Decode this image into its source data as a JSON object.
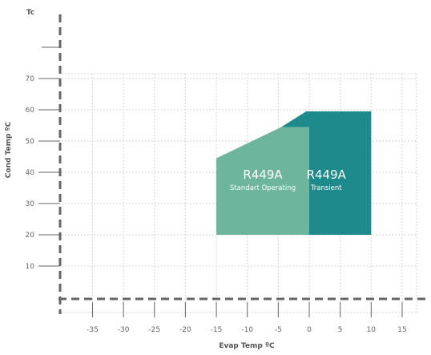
{
  "chart_data": {
    "type": "area",
    "title": "",
    "corner_label": "Tc",
    "xlabel": "Evap Temp ºC",
    "ylabel": "Cond Temp ºC",
    "x_ticks": [
      -35,
      -30,
      -25,
      -20,
      -15,
      -10,
      -5,
      0,
      5,
      10,
      15
    ],
    "x_tick_labels": [
      "-35",
      "-30",
      "-25",
      "-20",
      "-15",
      "-10",
      "-5",
      "0",
      "5",
      "10",
      "15"
    ],
    "y_ticks": [
      10,
      20,
      30,
      40,
      50,
      60,
      70
    ],
    "y_tick_labels": [
      "10",
      "20",
      "30",
      "40",
      "50",
      "60",
      "70"
    ],
    "xlim": [
      -40,
      20
    ],
    "ylim": [
      0,
      90
    ],
    "grid": true,
    "series": [
      {
        "name": "R449A",
        "sublabel": "Standart Operating",
        "color": "#6db59d",
        "polygon": [
          [
            -15,
            20
          ],
          [
            -15,
            44.5
          ],
          [
            -4.5,
            54.5
          ],
          [
            0,
            54.5
          ],
          [
            0,
            20
          ]
        ]
      },
      {
        "name": "R449A",
        "sublabel": "Transient",
        "color": "#1f8a8c",
        "polygon": [
          [
            0,
            20
          ],
          [
            0,
            54.5
          ],
          [
            -4.5,
            54.5
          ],
          [
            -0.5,
            59.5
          ],
          [
            10,
            59.5
          ],
          [
            10,
            20
          ]
        ]
      }
    ],
    "colors": {
      "axis": "#666666",
      "grid": "#d6d6d6",
      "tick_text": "#666666",
      "label_text": "#555555",
      "region_text": "#ffffff"
    }
  }
}
